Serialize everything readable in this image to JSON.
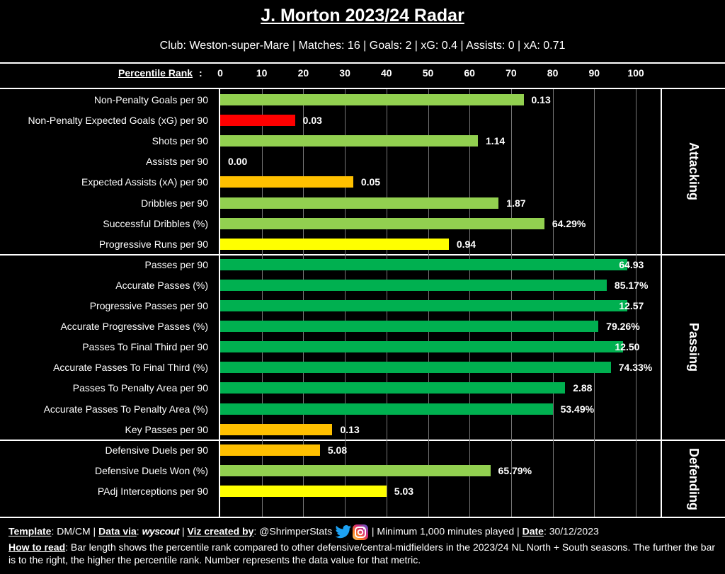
{
  "title": "J. Morton 2023/24 Radar",
  "subtitle": "Club: Weston-super-Mare | Matches: 16 | Goals: 2 | xG: 0.4 | Assists: 0 | xA: 0.71",
  "scale_label": "Percentile Rank",
  "scale_colon": ":",
  "footer": {
    "template_label": "Template",
    "template_value": ": DM/CM | ",
    "data_label": "Data via",
    "data_value": ": ",
    "wyscout": "wyscout",
    "viz_sep": " | ",
    "viz_label": "Viz created by",
    "viz_value": ": @ShrimperStats ",
    "minimum": " | Minimum 1,000 minutes played | ",
    "date_label": "Date",
    "date_value": ": 30/12/2023",
    "howto_label": "How to read",
    "howto_text": ": Bar length shows the percentile rank compared to other defensive/central-midfielders in the 2023/24 NL North + South seasons. The further the bar is to the right, the higher the percentile rank. Number represents the data value for that metric.",
    "twitter_icon": "twitter-icon",
    "instagram_icon": "instagram-icon"
  },
  "colors": {
    "light_green": "#92d050",
    "dark_green": "#00b050",
    "red": "#ff0000",
    "orange": "#ffc000",
    "yellow": "#ffff00"
  },
  "chart_data": {
    "type": "bar",
    "orientation": "horizontal",
    "xlabel": "Percentile Rank",
    "xlim": [
      0,
      100
    ],
    "xticks": [
      0,
      10,
      20,
      30,
      40,
      50,
      60,
      70,
      80,
      90,
      100
    ],
    "grid": true,
    "sections": [
      {
        "name": "Attacking",
        "start": 0,
        "end": 7
      },
      {
        "name": "Passing",
        "start": 8,
        "end": 16
      },
      {
        "name": "Defending",
        "start": 17,
        "end": 19
      }
    ],
    "metrics": [
      {
        "label": "Non-Penalty Goals per 90",
        "percentile": 73,
        "value": "0.13",
        "color": "#92d050"
      },
      {
        "label": "Non-Penalty Expected Goals (xG) per 90",
        "percentile": 18,
        "value": "0.03",
        "color": "#ff0000"
      },
      {
        "label": "Shots per 90",
        "percentile": 62,
        "value": "1.14",
        "color": "#92d050"
      },
      {
        "label": "Assists per 90",
        "percentile": 0,
        "value": "0.00",
        "color": "#92d050"
      },
      {
        "label": "Expected Assists (xA) per 90",
        "percentile": 32,
        "value": "0.05",
        "color": "#ffc000"
      },
      {
        "label": "Dribbles per 90",
        "percentile": 67,
        "value": "1.87",
        "color": "#92d050"
      },
      {
        "label": "Successful Dribbles (%)",
        "percentile": 78,
        "value": "64.29%",
        "color": "#92d050"
      },
      {
        "label": "Progressive Runs per 90",
        "percentile": 55,
        "value": "0.94",
        "color": "#ffff00"
      },
      {
        "label": "Passes per 90",
        "percentile": 98,
        "value": "64.93",
        "color": "#00b050"
      },
      {
        "label": "Accurate Passes (%)",
        "percentile": 93,
        "value": "85.17%",
        "color": "#00b050"
      },
      {
        "label": "Progressive Passes per 90",
        "percentile": 98,
        "value": "12.57",
        "color": "#00b050"
      },
      {
        "label": "Accurate Progressive Passes (%)",
        "percentile": 91,
        "value": "79.26%",
        "color": "#00b050"
      },
      {
        "label": "Passes To Final Third per 90",
        "percentile": 97,
        "value": "12.50",
        "color": "#00b050"
      },
      {
        "label": "Accurate Passes To Final Third (%)",
        "percentile": 94,
        "value": "74.33%",
        "color": "#00b050"
      },
      {
        "label": "Passes To Penalty Area per 90",
        "percentile": 83,
        "value": "2.88",
        "color": "#00b050"
      },
      {
        "label": "Accurate Passes To Penalty Area (%)",
        "percentile": 80,
        "value": "53.49%",
        "color": "#00b050"
      },
      {
        "label": "Key Passes per 90",
        "percentile": 27,
        "value": "0.13",
        "color": "#ffc000"
      },
      {
        "label": "Defensive Duels per 90",
        "percentile": 24,
        "value": "5.08",
        "color": "#ffc000"
      },
      {
        "label": "Defensive Duels Won (%)",
        "percentile": 65,
        "value": "65.79%",
        "color": "#92d050"
      },
      {
        "label": "PAdj Interceptions per 90",
        "percentile": 40,
        "value": "5.03",
        "color": "#ffff00"
      }
    ]
  }
}
